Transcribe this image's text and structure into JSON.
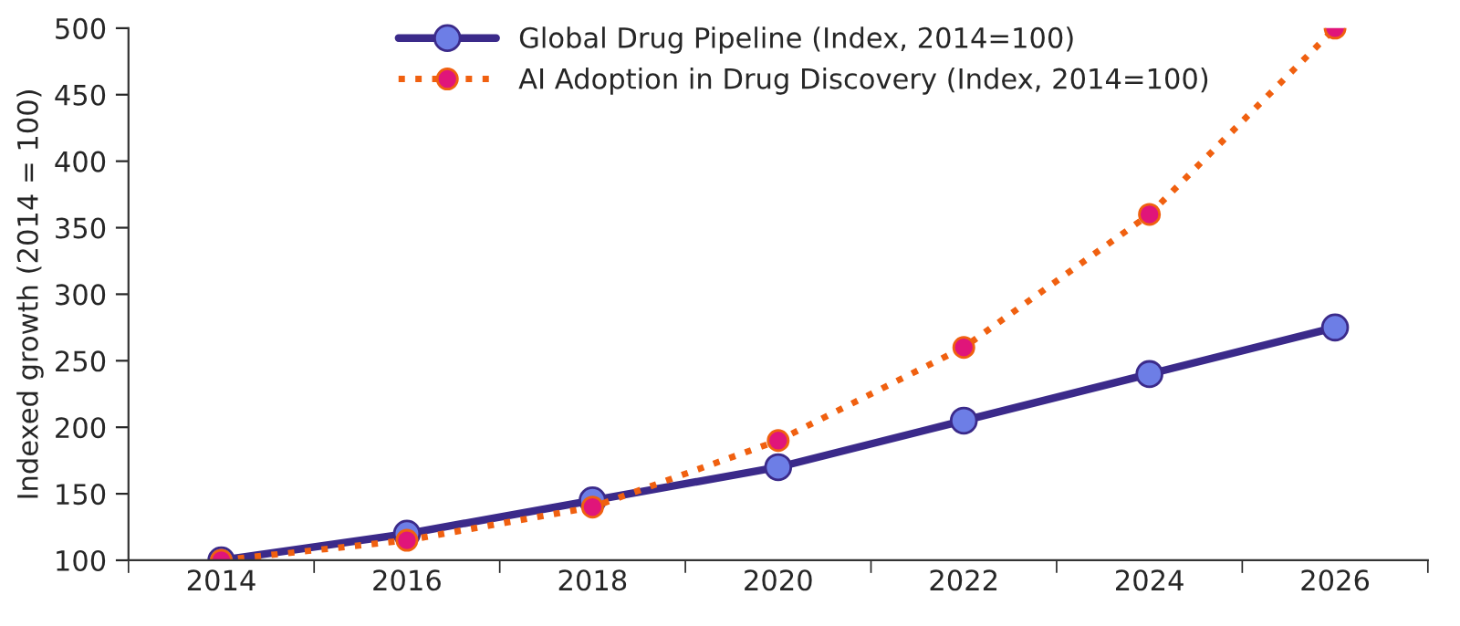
{
  "chart_data": {
    "type": "line",
    "ylabel": "Indexed growth (2014 = 100)",
    "categories": [
      "2014",
      "2016",
      "2018",
      "2020",
      "2022",
      "2024",
      "2026"
    ],
    "series": [
      {
        "name": "Global Drug Pipeline (Index, 2014=100)",
        "color": "#3b2a8a",
        "line_style": "solid",
        "values": [
          100,
          120,
          145,
          170,
          205,
          240,
          275
        ]
      },
      {
        "name": "AI Adoption in Drug Discovery (Index, 2014=100)",
        "color": "#f06010",
        "line_style": "dotted",
        "values": [
          100,
          115,
          140,
          190,
          260,
          360,
          500
        ]
      }
    ],
    "ylim": [
      100,
      500
    ],
    "yticks": [
      100,
      150,
      200,
      250,
      300,
      350,
      400,
      450,
      500
    ],
    "marker": "circle",
    "grid": false,
    "legend": "top"
  }
}
